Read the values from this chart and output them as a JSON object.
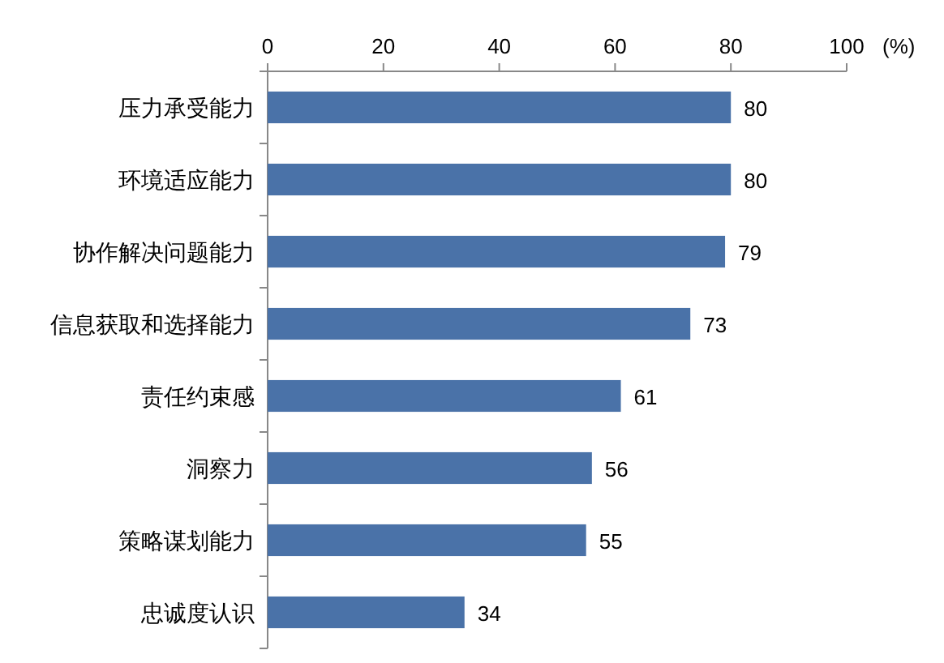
{
  "chart_data": {
    "type": "bar",
    "orientation": "horizontal",
    "xlabel": "(%)",
    "categories": [
      "压力承受能力",
      "环境适应能力",
      "协作解决问题能力",
      "信息获取和选择能力",
      "责任约束感",
      "洞察力",
      "策略谋划能力",
      "忠诚度认识"
    ],
    "values": [
      80,
      80,
      79,
      73,
      61,
      56,
      55,
      34
    ],
    "color": "#4a72a8",
    "xlim": [
      0,
      100
    ],
    "xticks": [
      0,
      20,
      40,
      60,
      80,
      100
    ],
    "data_labels": true
  }
}
